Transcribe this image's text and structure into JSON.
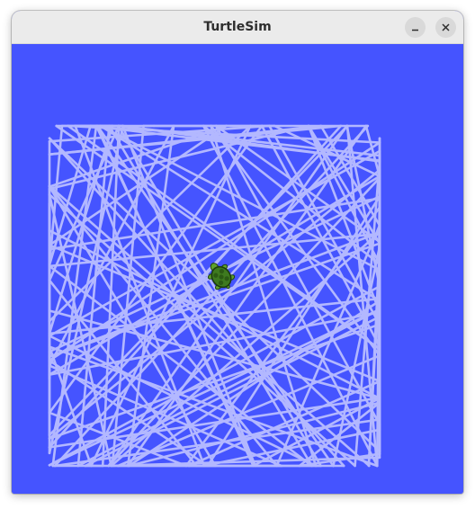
{
  "window": {
    "title": "TurtleSim"
  },
  "controls": {
    "minimize_icon": "minimize-icon",
    "close_icon": "close-icon"
  },
  "canvas": {
    "background_color": "#4554ff",
    "pen_color": "#b3b8ff",
    "turtle_color": "#3e7a1f"
  }
}
